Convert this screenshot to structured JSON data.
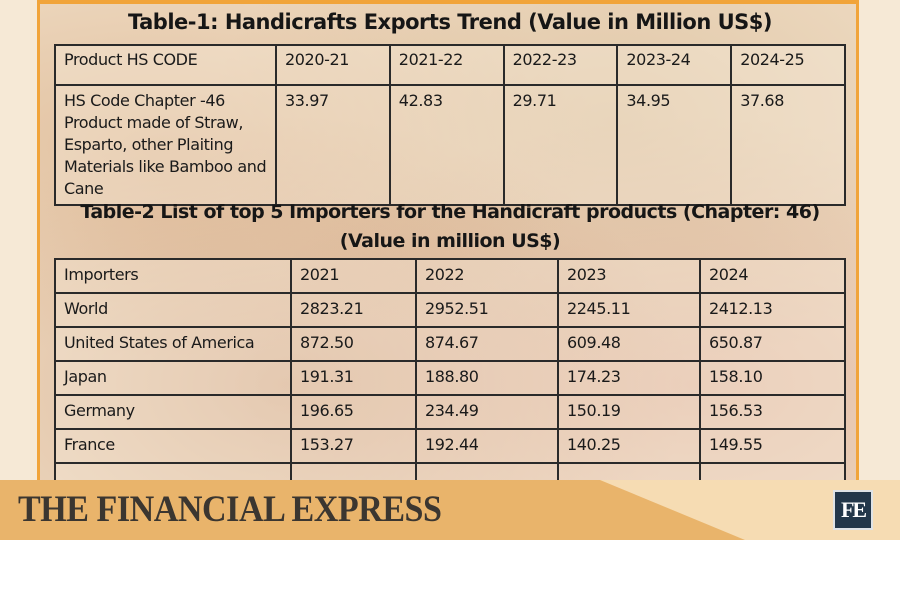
{
  "table1": {
    "title": "Table-1: Handicrafts Exports Trend  (Value in Million US$)",
    "headers": [
      "Product HS CODE",
      "2020-21",
      "2021-22",
      "2022-23",
      "2023-24",
      "2024-25"
    ],
    "row": [
      "HS Code Chapter -46 Product made of Straw, Esparto, other Plaiting Materials like Bamboo and Cane",
      "33.97",
      "42.83",
      "29.71",
      "34.95",
      "37.68"
    ]
  },
  "table2": {
    "title": "Table-2 List of top 5 Importers for the Handicraft products (Chapter: 46)",
    "subtitle": "(Value in million US$)",
    "headers": [
      "Importers",
      "2021",
      "2022",
      "2023",
      "2024"
    ],
    "rows": [
      [
        "World",
        "2823.21",
        "2952.51",
        "2245.11",
        "2412.13"
      ],
      [
        "United States of America",
        "872.50",
        "874.67",
        "609.48",
        "650.87"
      ],
      [
        "Japan",
        "191.31",
        "188.80",
        "174.23",
        "158.10"
      ],
      [
        "Germany",
        "196.65",
        "234.49",
        "150.19",
        "156.53"
      ],
      [
        "France",
        "153.27",
        "192.44",
        "140.25",
        "149.55"
      ]
    ]
  },
  "banner": {
    "brand": "THE FINANCIAL EXPRESS",
    "logo": "FE"
  },
  "colors": {
    "border": "#f1a43a",
    "banner_dark": "#e9b46b",
    "banner_light": "#f6dcb3",
    "logo_bg": "#23374a"
  }
}
